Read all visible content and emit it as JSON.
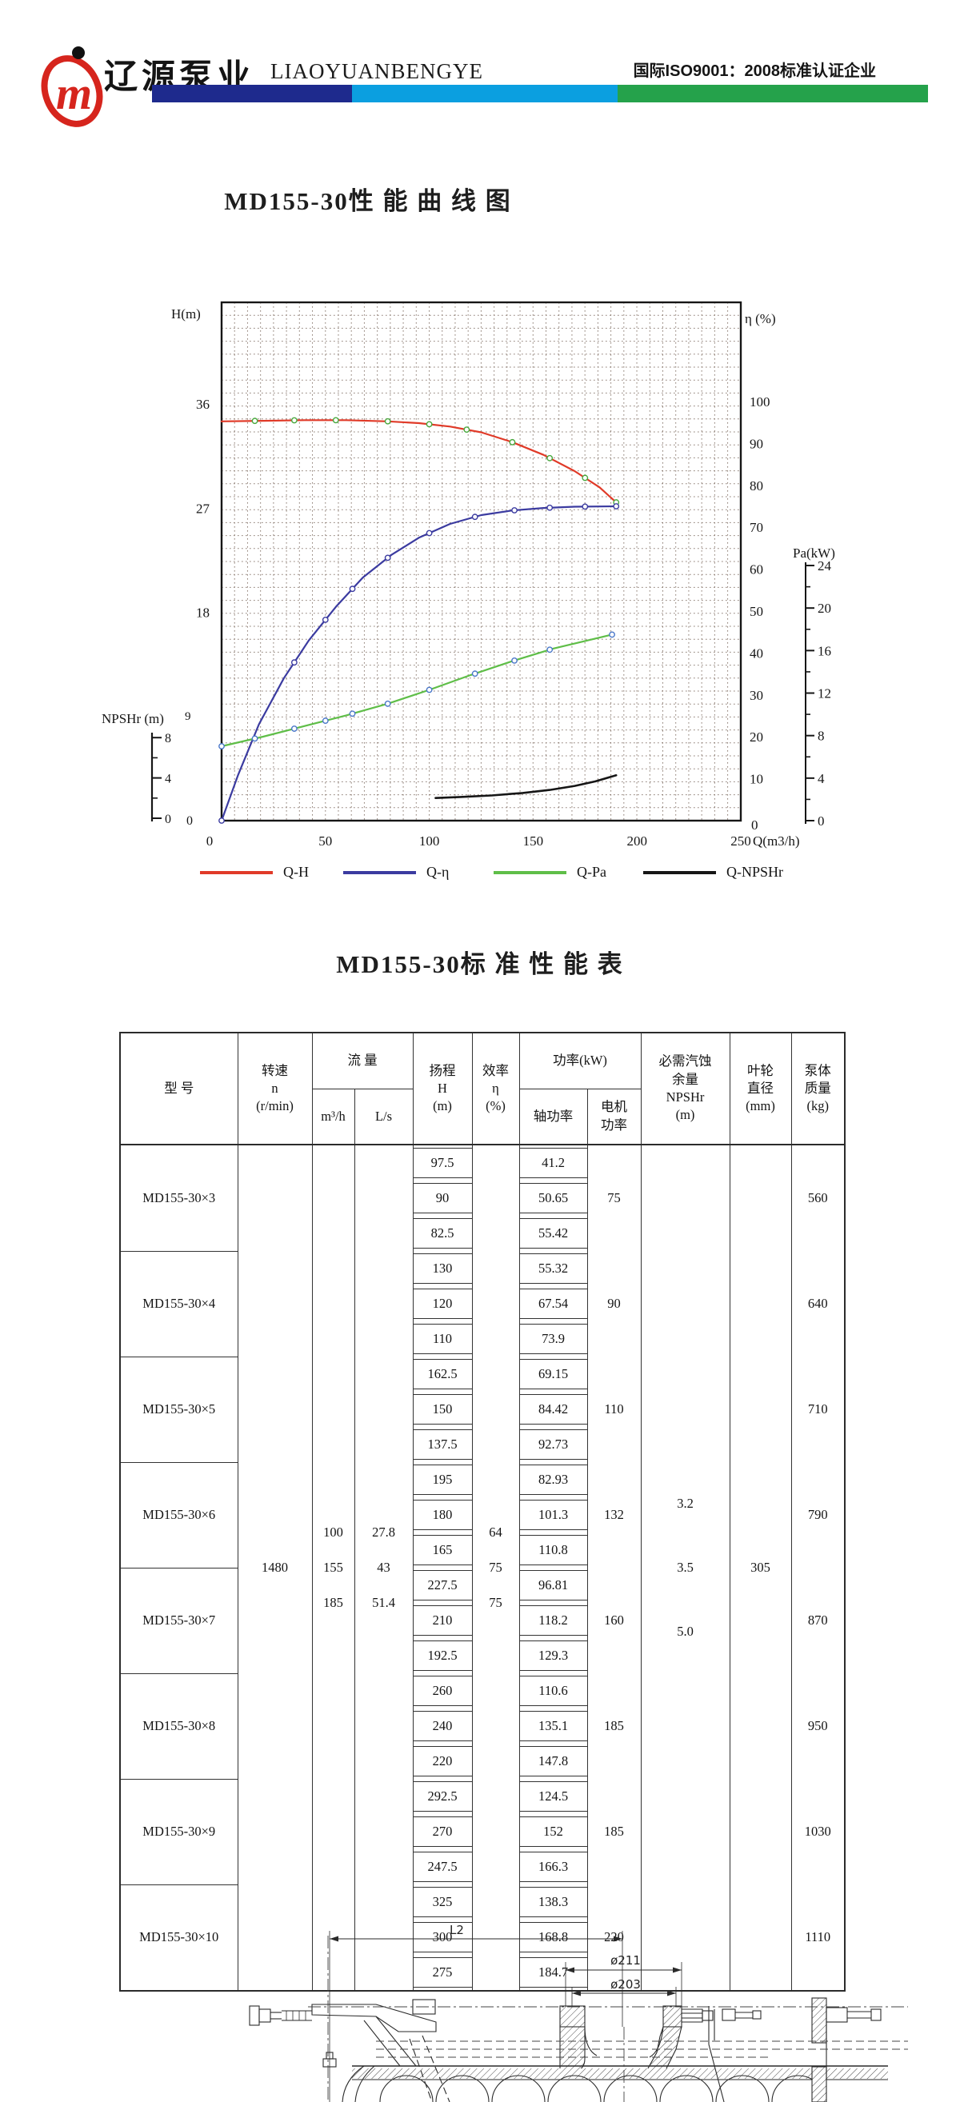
{
  "header": {
    "brand_cn": "辽源泵业",
    "brand_en": "LIAOYUANBENGYE",
    "certification": "国际ISO9001：2008标准认证企业",
    "bar_colors": [
      "#1e2a8d",
      "#0b9fe0",
      "#25a24b"
    ],
    "logo_color": "#d6251d",
    "logo_letter": "m"
  },
  "curve_section": {
    "title": "MD155-30性 能 曲 线 图"
  },
  "chart_data": {
    "type": "line",
    "title": "MD155-30性能曲线图",
    "x_axis": {
      "label": "Q(m3/h)",
      "min": 0,
      "max": 250,
      "ticks": [
        0,
        50,
        100,
        150,
        200,
        250
      ]
    },
    "y_axes": {
      "H": {
        "label": "H(m)",
        "ticks": [
          0,
          9,
          18,
          27,
          36
        ]
      },
      "eta": {
        "label": "η (%)",
        "ticks": [
          0,
          10,
          20,
          30,
          40,
          50,
          60,
          70,
          80,
          90,
          100
        ]
      },
      "Pa": {
        "label": "Pa(kW)",
        "ticks": [
          0,
          4,
          8,
          12,
          16,
          20,
          24
        ]
      },
      "NPSHr": {
        "label": "NPSHr (m)",
        "ticks": [
          0,
          4,
          8
        ]
      }
    },
    "grid": true,
    "legend_position": "bottom",
    "series": [
      {
        "name": "Q-H",
        "axis": "H",
        "color": "#e03a28",
        "marker_color": "#47a83c",
        "points": [
          [
            0,
            34.5
          ],
          [
            20,
            34.55
          ],
          [
            40,
            34.6
          ],
          [
            60,
            34.6
          ],
          [
            80,
            34.5
          ],
          [
            95,
            34.35
          ],
          [
            110,
            34.05
          ],
          [
            125,
            33.55
          ],
          [
            140,
            32.7
          ],
          [
            155,
            31.6
          ],
          [
            170,
            30.2
          ],
          [
            182,
            28.8
          ],
          [
            190,
            27.5
          ]
        ],
        "markers_at": [
          16,
          35,
          55,
          80,
          100,
          118,
          140,
          158,
          175,
          190
        ]
      },
      {
        "name": "Q-η",
        "axis": "eta",
        "color": "#3b3ba0",
        "marker_color": "#3b3ba0",
        "points": [
          [
            0,
            0
          ],
          [
            8,
            11
          ],
          [
            18,
            23
          ],
          [
            30,
            34
          ],
          [
            42,
            43
          ],
          [
            55,
            51
          ],
          [
            68,
            58
          ],
          [
            82,
            63.5
          ],
          [
            95,
            67.5
          ],
          [
            110,
            70.8
          ],
          [
            125,
            72.9
          ],
          [
            140,
            74
          ],
          [
            155,
            74.6
          ],
          [
            170,
            74.9
          ],
          [
            190,
            75
          ]
        ],
        "markers_at": [
          0,
          35,
          50,
          63,
          80,
          100,
          122,
          141,
          158,
          175,
          190
        ]
      },
      {
        "name": "Q-Pa",
        "axis": "Pa",
        "color": "#5fbe48",
        "marker_color": "#4a77c9",
        "points": [
          [
            0,
            7
          ],
          [
            20,
            7.9
          ],
          [
            40,
            8.9
          ],
          [
            60,
            9.9
          ],
          [
            80,
            11
          ],
          [
            100,
            12.3
          ],
          [
            120,
            13.7
          ],
          [
            140,
            15
          ],
          [
            160,
            16.2
          ],
          [
            175,
            16.9
          ],
          [
            188,
            17.5
          ]
        ],
        "markers_at": [
          0,
          16,
          35,
          50,
          63,
          80,
          100,
          122,
          141,
          158,
          188
        ]
      },
      {
        "name": "Q-NPSHr",
        "axis": "NPSHr",
        "color": "#161616",
        "marker_color": null,
        "points": [
          [
            103,
            3.2
          ],
          [
            115,
            3.3
          ],
          [
            130,
            3.45
          ],
          [
            145,
            3.7
          ],
          [
            158,
            4.0
          ],
          [
            170,
            4.4
          ],
          [
            180,
            4.85
          ],
          [
            190,
            5.45
          ]
        ],
        "markers_at": []
      }
    ]
  },
  "table_section": {
    "title": "MD155-30标 准 性 能 表",
    "headers": {
      "model": "型 号",
      "speed": "转速\nn\n(r/min)",
      "flow": "流 量",
      "flow_m3h": "m³/h",
      "flow_ls": "L/s",
      "head": "扬程\nH\n(m)",
      "eff": "效率\nη\n(%)",
      "power": "功率(kW)",
      "shaft": "轴功率",
      "motor": "电机\n功率",
      "npshr": "必需汽蚀\n余量\nNPSHr\n(m)",
      "impeller": "叶轮\n直径\n(mm)",
      "mass": "泵体\n质量\n(kg)"
    },
    "shared": {
      "speed": "1480",
      "flow_m3h": [
        "100",
        "155",
        "185"
      ],
      "flow_ls": [
        "27.8",
        "43",
        "51.4"
      ],
      "eff": [
        "64",
        "75",
        "75"
      ],
      "npshr": [
        "3.2",
        "3.5",
        "5.0"
      ],
      "impeller": "305"
    },
    "models": [
      {
        "model": "MD155-30×3",
        "head": [
          "97.5",
          "90",
          "82.5"
        ],
        "shaft": [
          "41.2",
          "50.65",
          "55.42"
        ],
        "motor": "75",
        "mass": "560"
      },
      {
        "model": "MD155-30×4",
        "head": [
          "130",
          "120",
          "110"
        ],
        "shaft": [
          "55.32",
          "67.54",
          "73.9"
        ],
        "motor": "90",
        "mass": "640"
      },
      {
        "model": "MD155-30×5",
        "head": [
          "162.5",
          "150",
          "137.5"
        ],
        "shaft": [
          "69.15",
          "84.42",
          "92.73"
        ],
        "motor": "110",
        "mass": "710"
      },
      {
        "model": "MD155-30×6",
        "head": [
          "195",
          "180",
          "165"
        ],
        "shaft": [
          "82.93",
          "101.3",
          "110.8"
        ],
        "motor": "132",
        "mass": "790"
      },
      {
        "model": "MD155-30×7",
        "head": [
          "227.5",
          "210",
          "192.5"
        ],
        "shaft": [
          "96.81",
          "118.2",
          "129.3"
        ],
        "motor": "160",
        "mass": "870"
      },
      {
        "model": "MD155-30×8",
        "head": [
          "260",
          "240",
          "220"
        ],
        "shaft": [
          "110.6",
          "135.1",
          "147.8"
        ],
        "motor": "185",
        "mass": "950"
      },
      {
        "model": "MD155-30×9",
        "head": [
          "292.5",
          "270",
          "247.5"
        ],
        "shaft": [
          "124.5",
          "152",
          "166.3"
        ],
        "motor": "185",
        "mass": "1030"
      },
      {
        "model": "MD155-30×10",
        "head": [
          "325",
          "300",
          "275"
        ],
        "shaft": [
          "138.3",
          "168.8",
          "184.7"
        ],
        "motor": "220",
        "mass": "1110"
      }
    ]
  },
  "drawing": {
    "l2": "L2",
    "d211": "ø211",
    "d203": "ø203"
  }
}
